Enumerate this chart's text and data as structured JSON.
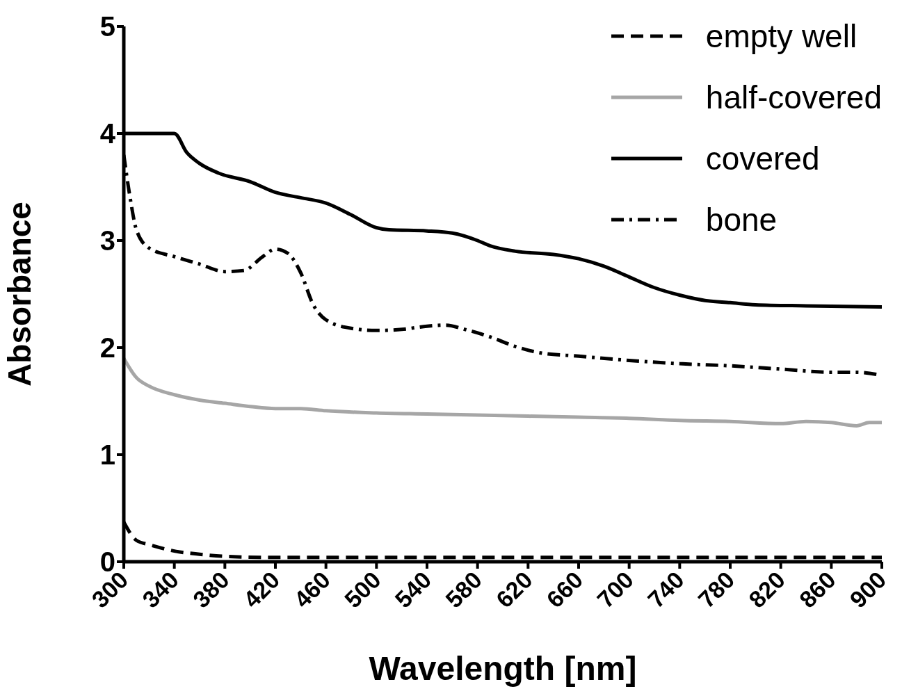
{
  "chart_data": {
    "type": "line",
    "xlabel": "Wavelength [nm]",
    "ylabel": "Absorbance",
    "xlim": [
      300,
      900
    ],
    "xticks": [
      300,
      340,
      380,
      420,
      460,
      500,
      540,
      580,
      620,
      660,
      700,
      740,
      780,
      820,
      860,
      900
    ],
    "ylim": [
      0,
      5
    ],
    "yticks": [
      0,
      1,
      2,
      3,
      4,
      5
    ],
    "grid": false,
    "legend": "top right",
    "marker": "none",
    "series": [
      {
        "name": "empty well",
        "color": "#000000",
        "line_style": "dashed",
        "x": [
          300,
          310,
          320,
          340,
          360,
          380,
          420,
          500,
          600,
          700,
          800,
          900
        ],
        "values": [
          0.37,
          0.2,
          0.16,
          0.1,
          0.07,
          0.05,
          0.04,
          0.04,
          0.04,
          0.04,
          0.04,
          0.04
        ]
      },
      {
        "name": "half-covered",
        "color": "#a6a6a6",
        "line_style": "solid",
        "x": [
          300,
          310,
          320,
          340,
          360,
          380,
          400,
          420,
          440,
          460,
          500,
          540,
          580,
          620,
          660,
          700,
          740,
          780,
          820,
          840,
          860,
          880,
          890,
          900
        ],
        "values": [
          1.9,
          1.72,
          1.64,
          1.56,
          1.51,
          1.48,
          1.45,
          1.43,
          1.43,
          1.41,
          1.39,
          1.38,
          1.37,
          1.36,
          1.35,
          1.34,
          1.32,
          1.31,
          1.29,
          1.31,
          1.3,
          1.27,
          1.3,
          1.3
        ]
      },
      {
        "name": "covered",
        "color": "#000000",
        "line_style": "solid",
        "x": [
          300,
          340,
          350,
          360,
          375,
          400,
          420,
          440,
          460,
          480,
          500,
          510,
          540,
          560,
          580,
          590,
          610,
          640,
          660,
          680,
          700,
          720,
          740,
          760,
          780,
          800,
          840,
          900
        ],
        "values": [
          4.0,
          4.0,
          3.82,
          3.72,
          3.63,
          3.55,
          3.45,
          3.4,
          3.35,
          3.24,
          3.12,
          3.1,
          3.09,
          3.07,
          3.0,
          2.95,
          2.9,
          2.87,
          2.83,
          2.76,
          2.66,
          2.56,
          2.49,
          2.44,
          2.42,
          2.4,
          2.39,
          2.38
        ]
      },
      {
        "name": "bone",
        "color": "#000000",
        "line_style": "dashdot",
        "x": [
          300,
          305,
          310,
          320,
          340,
          360,
          380,
          395,
          410,
          420,
          430,
          440,
          450,
          460,
          480,
          500,
          520,
          540,
          555,
          570,
          590,
          610,
          630,
          660,
          700,
          740,
          780,
          820,
          860,
          880,
          900
        ],
        "values": [
          3.8,
          3.4,
          3.1,
          2.93,
          2.85,
          2.78,
          2.71,
          2.72,
          2.85,
          2.92,
          2.88,
          2.7,
          2.4,
          2.26,
          2.18,
          2.16,
          2.17,
          2.2,
          2.21,
          2.17,
          2.1,
          2.01,
          1.95,
          1.92,
          1.88,
          1.85,
          1.83,
          1.8,
          1.77,
          1.77,
          1.74
        ]
      }
    ]
  }
}
